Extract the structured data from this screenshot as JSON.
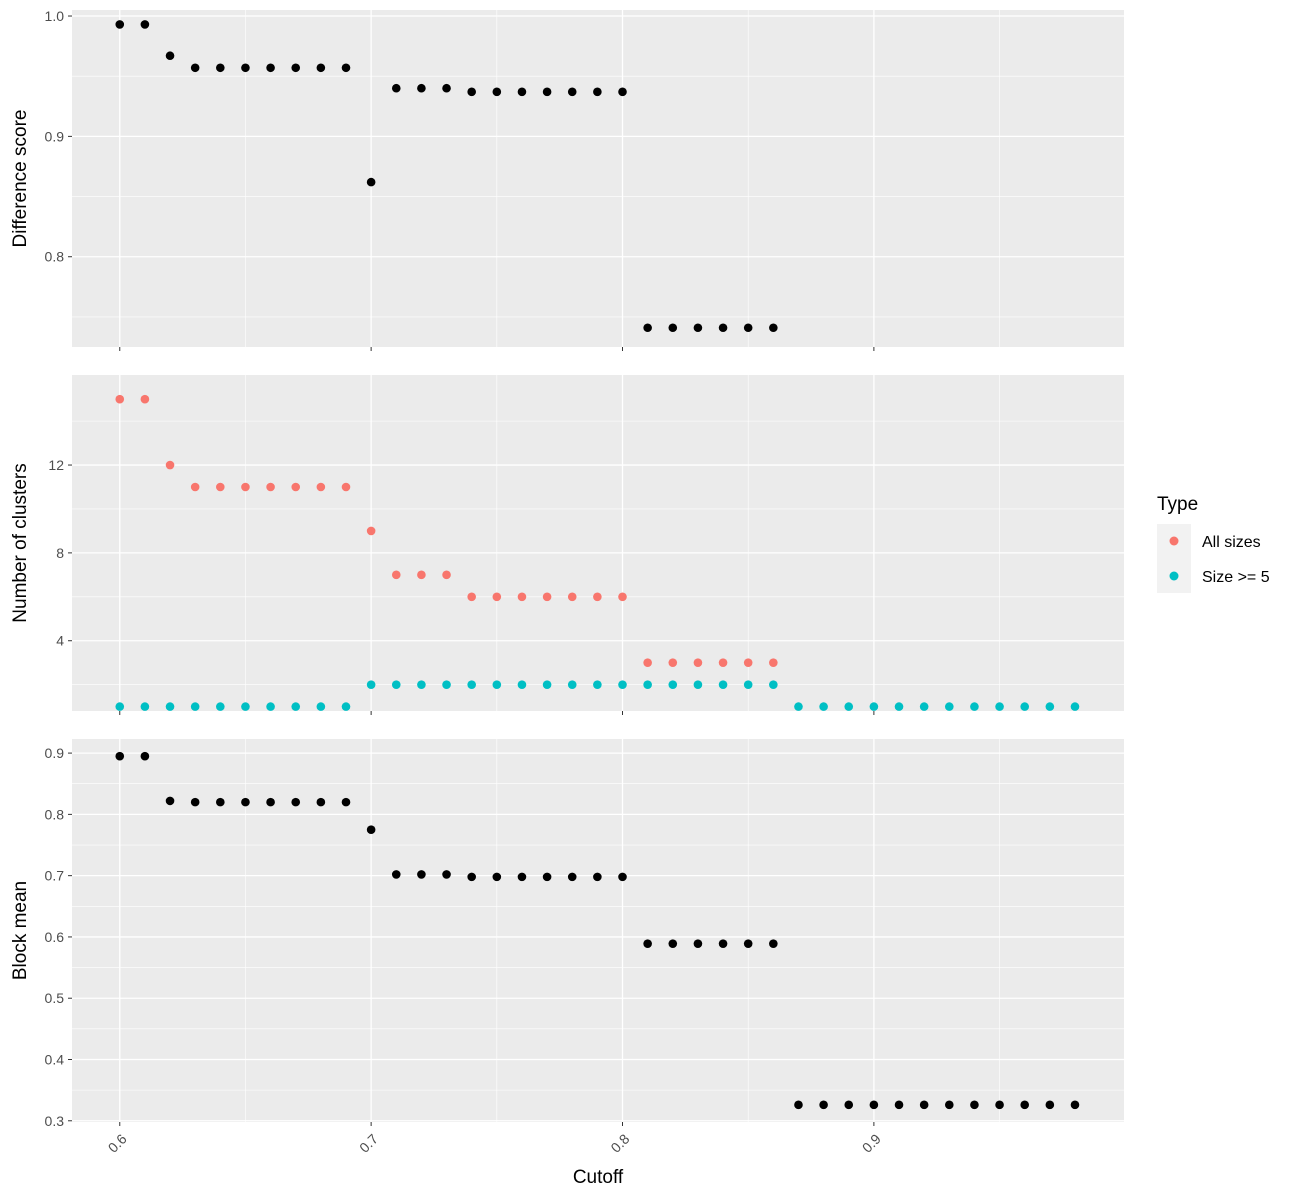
{
  "chart_data": [
    {
      "type": "scatter",
      "ylabel": "Difference score",
      "ylim": [
        0.725,
        1.005
      ],
      "yticks": [
        0.8,
        0.9,
        1.0
      ],
      "ytick_labels": [
        "0.8",
        "0.9",
        "1.0"
      ],
      "series": [
        {
          "color": "#000000",
          "x": [
            0.6,
            0.61,
            0.62,
            0.63,
            0.64,
            0.65,
            0.66,
            0.67,
            0.68,
            0.69,
            0.7,
            0.71,
            0.72,
            0.73,
            0.74,
            0.75,
            0.76,
            0.77,
            0.78,
            0.79,
            0.8,
            0.81,
            0.82,
            0.83,
            0.84,
            0.85,
            0.86
          ],
          "y": [
            0.993,
            0.993,
            0.967,
            0.957,
            0.957,
            0.957,
            0.957,
            0.957,
            0.957,
            0.957,
            0.862,
            0.94,
            0.94,
            0.94,
            0.937,
            0.937,
            0.937,
            0.937,
            0.937,
            0.937,
            0.937,
            0.741,
            0.741,
            0.741,
            0.741,
            0.741,
            0.741
          ]
        }
      ]
    },
    {
      "type": "scatter",
      "ylabel": "Number of clusters",
      "ylim": [
        0.8,
        16.1
      ],
      "yticks": [
        4,
        8,
        12
      ],
      "ytick_labels": [
        "4",
        "8",
        "12"
      ],
      "series": [
        {
          "name": "All sizes",
          "color": "#F8766D",
          "x": [
            0.6,
            0.61,
            0.62,
            0.63,
            0.64,
            0.65,
            0.66,
            0.67,
            0.68,
            0.69,
            0.7,
            0.71,
            0.72,
            0.73,
            0.74,
            0.75,
            0.76,
            0.77,
            0.78,
            0.79,
            0.8,
            0.81,
            0.82,
            0.83,
            0.84,
            0.85,
            0.86
          ],
          "y": [
            15,
            15,
            12,
            11,
            11,
            11,
            11,
            11,
            11,
            11,
            9,
            7,
            7,
            7,
            6,
            6,
            6,
            6,
            6,
            6,
            6,
            3,
            3,
            3,
            3,
            3,
            3
          ]
        },
        {
          "name": "Size >= 5",
          "color": "#00BFC4",
          "x": [
            0.6,
            0.61,
            0.62,
            0.63,
            0.64,
            0.65,
            0.66,
            0.67,
            0.68,
            0.69,
            0.7,
            0.71,
            0.72,
            0.73,
            0.74,
            0.75,
            0.76,
            0.77,
            0.78,
            0.79,
            0.8,
            0.81,
            0.82,
            0.83,
            0.84,
            0.85,
            0.86,
            0.87,
            0.88,
            0.89,
            0.9,
            0.91,
            0.92,
            0.93,
            0.94,
            0.95,
            0.96,
            0.97,
            0.98
          ],
          "y": [
            1,
            1,
            1,
            1,
            1,
            1,
            1,
            1,
            1,
            1,
            2,
            2,
            2,
            2,
            2,
            2,
            2,
            2,
            2,
            2,
            2,
            2,
            2,
            2,
            2,
            2,
            2,
            1,
            1,
            1,
            1,
            1,
            1,
            1,
            1,
            1,
            1,
            1,
            1
          ]
        }
      ]
    },
    {
      "type": "scatter",
      "ylabel": "Block mean",
      "xlabel": "Cutoff",
      "ylim": [
        0.298,
        0.923
      ],
      "yticks": [
        0.3,
        0.4,
        0.5,
        0.6,
        0.7,
        0.8,
        0.9
      ],
      "ytick_labels": [
        "0.3",
        "0.4",
        "0.5",
        "0.6",
        "0.7",
        "0.8",
        "0.9"
      ],
      "series": [
        {
          "color": "#000000",
          "x": [
            0.6,
            0.61,
            0.62,
            0.63,
            0.64,
            0.65,
            0.66,
            0.67,
            0.68,
            0.69,
            0.7,
            0.71,
            0.72,
            0.73,
            0.74,
            0.75,
            0.76,
            0.77,
            0.78,
            0.79,
            0.8,
            0.81,
            0.82,
            0.83,
            0.84,
            0.85,
            0.86,
            0.87,
            0.88,
            0.89,
            0.9,
            0.91,
            0.92,
            0.93,
            0.94,
            0.95,
            0.96,
            0.97,
            0.98
          ],
          "y": [
            0.895,
            0.895,
            0.822,
            0.82,
            0.82,
            0.82,
            0.82,
            0.82,
            0.82,
            0.82,
            0.775,
            0.702,
            0.702,
            0.702,
            0.698,
            0.698,
            0.698,
            0.698,
            0.698,
            0.698,
            0.698,
            0.589,
            0.589,
            0.589,
            0.589,
            0.589,
            0.589,
            0.326,
            0.326,
            0.326,
            0.326,
            0.326,
            0.326,
            0.326,
            0.326,
            0.326,
            0.326,
            0.326,
            0.326
          ]
        }
      ]
    }
  ],
  "x_axis": {
    "xlim": [
      0.581,
      0.9995
    ],
    "ticks": [
      0.6,
      0.7,
      0.8,
      0.9
    ],
    "tick_labels": [
      "0.6",
      "0.7",
      "0.8",
      "0.9"
    ],
    "label": "Cutoff"
  },
  "legend": {
    "title": "Type",
    "position": "right",
    "items": [
      {
        "label": "All sizes",
        "color": "#F8766D"
      },
      {
        "label": "Size >= 5",
        "color": "#00BFC4"
      }
    ]
  },
  "style": {
    "panel_bg": "#EBEBEB",
    "grid_major": "#FFFFFF",
    "axis_tick": "#333333"
  }
}
